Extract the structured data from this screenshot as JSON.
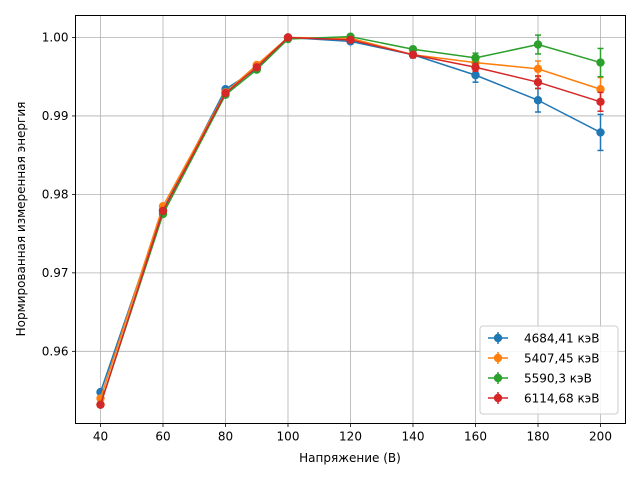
{
  "chart_data": {
    "type": "line",
    "title": "",
    "xlabel": "Напряжение (В)",
    "ylabel": "Нормированная измеренная энергия",
    "xlim": [
      32,
      208
    ],
    "ylim": [
      0.9508,
      1.0028
    ],
    "xticks": [
      40,
      60,
      80,
      100,
      120,
      140,
      160,
      180,
      200
    ],
    "yticks": [
      0.96,
      0.97,
      0.98,
      0.99,
      1.0
    ],
    "ytick_labels": [
      "0.96",
      "0.97",
      "0.98",
      "0.99",
      "1.00"
    ],
    "grid": true,
    "legend_position": "lower-right",
    "x": [
      40,
      60,
      80,
      90,
      100,
      120,
      140,
      160,
      180,
      200
    ],
    "series": [
      {
        "name": "4684,41 кэВ",
        "color": "#1f77b4",
        "values": [
          0.9548,
          0.978,
          0.9934,
          0.996,
          1.0,
          0.9995,
          0.9978,
          0.9952,
          0.992,
          0.9879
        ],
        "errors": [
          0.0002,
          0.0002,
          0.0002,
          0.0002,
          0.0,
          0.0003,
          0.0004,
          0.0009,
          0.0015,
          0.0023
        ]
      },
      {
        "name": "5407,45 кэВ",
        "color": "#ff7f0e",
        "values": [
          0.954,
          0.9785,
          0.993,
          0.9965,
          1.0,
          0.9999,
          0.9978,
          0.9968,
          0.996,
          0.9934
        ],
        "errors": [
          0.0002,
          0.0002,
          0.0002,
          0.0002,
          0.0,
          0.0002,
          0.0003,
          0.0006,
          0.001,
          0.0015
        ]
      },
      {
        "name": "5590,3 кэВ",
        "color": "#2ca02c",
        "values": [
          0.9532,
          0.9775,
          0.9927,
          0.9959,
          0.9998,
          1.0001,
          0.9985,
          0.9974,
          0.9991,
          0.9968
        ],
        "errors": [
          0.0002,
          0.0002,
          0.0002,
          0.0002,
          0.0002,
          0.0002,
          0.0003,
          0.0006,
          0.0012,
          0.0018
        ]
      },
      {
        "name": "6114,68 кэВ",
        "color": "#d62728",
        "values": [
          0.9532,
          0.9779,
          0.9929,
          0.9962,
          1.0,
          0.9997,
          0.9978,
          0.9962,
          0.9943,
          0.9918
        ],
        "errors": [
          0.0002,
          0.0002,
          0.0002,
          0.0002,
          0.0,
          0.0002,
          0.0003,
          0.0005,
          0.0008,
          0.0012
        ]
      }
    ]
  }
}
